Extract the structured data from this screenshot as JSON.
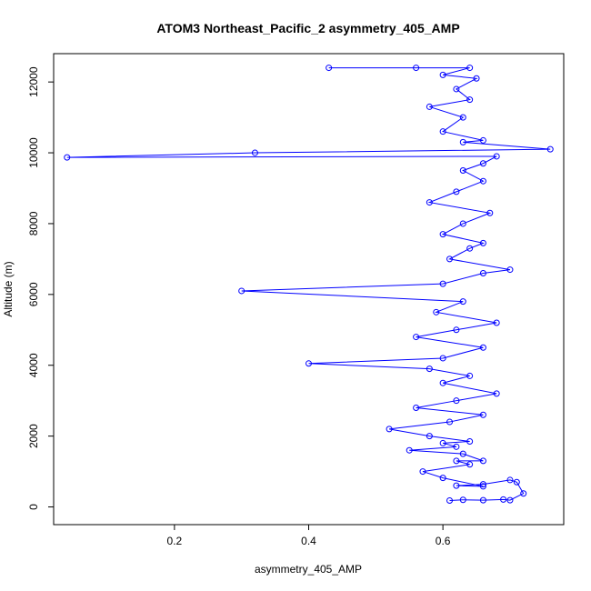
{
  "chart_data": {
    "type": "line",
    "title": "ATOM3 Northeast_Pacific_2 asymmetry_405_AMP",
    "xlabel": "asymmetry_405_AMP",
    "ylabel": "Altitude (m)",
    "xlim": [
      0.02,
      0.78
    ],
    "ylim": [
      -500,
      12800
    ],
    "xticks": [
      0.2,
      0.4,
      0.6
    ],
    "xtick_labels": [
      "0.2",
      "0.4",
      "0.6"
    ],
    "yticks": [
      0,
      2000,
      4000,
      6000,
      8000,
      10000,
      12000
    ],
    "ytick_labels": [
      "0",
      "2000",
      "4000",
      "6000",
      "8000",
      "10000",
      "12000"
    ],
    "grid": false,
    "marker": "open-circle",
    "color": "#0000ff",
    "series": [
      {
        "points": [
          [
            0.61,
            180
          ],
          [
            0.63,
            200
          ],
          [
            0.66,
            190
          ],
          [
            0.69,
            210
          ],
          [
            0.7,
            190
          ],
          [
            0.72,
            380
          ],
          [
            0.71,
            700
          ],
          [
            0.7,
            760
          ],
          [
            0.66,
            640
          ],
          [
            0.62,
            600
          ],
          [
            0.66,
            580
          ],
          [
            0.6,
            820
          ],
          [
            0.57,
            1000
          ],
          [
            0.64,
            1200
          ],
          [
            0.62,
            1300
          ],
          [
            0.66,
            1300
          ],
          [
            0.63,
            1500
          ],
          [
            0.55,
            1600
          ],
          [
            0.62,
            1700
          ],
          [
            0.6,
            1800
          ],
          [
            0.64,
            1850
          ],
          [
            0.58,
            2000
          ],
          [
            0.52,
            2200
          ],
          [
            0.61,
            2400
          ],
          [
            0.66,
            2600
          ],
          [
            0.56,
            2800
          ],
          [
            0.62,
            3000
          ],
          [
            0.68,
            3200
          ],
          [
            0.6,
            3500
          ],
          [
            0.64,
            3700
          ],
          [
            0.58,
            3900
          ],
          [
            0.4,
            4050
          ],
          [
            0.6,
            4200
          ],
          [
            0.66,
            4500
          ],
          [
            0.56,
            4800
          ],
          [
            0.62,
            5000
          ],
          [
            0.68,
            5200
          ],
          [
            0.59,
            5500
          ],
          [
            0.63,
            5800
          ],
          [
            0.3,
            6100
          ],
          [
            0.6,
            6300
          ],
          [
            0.66,
            6600
          ],
          [
            0.7,
            6700
          ],
          [
            0.61,
            7000
          ],
          [
            0.64,
            7300
          ],
          [
            0.66,
            7450
          ],
          [
            0.6,
            7700
          ],
          [
            0.63,
            8000
          ],
          [
            0.67,
            8300
          ],
          [
            0.58,
            8600
          ],
          [
            0.62,
            8900
          ],
          [
            0.66,
            9200
          ],
          [
            0.63,
            9500
          ],
          [
            0.66,
            9700
          ],
          [
            0.68,
            9900
          ],
          [
            0.04,
            9870
          ],
          [
            0.32,
            10000
          ],
          [
            0.76,
            10100
          ],
          [
            0.63,
            10300
          ],
          [
            0.66,
            10350
          ],
          [
            0.6,
            10600
          ],
          [
            0.63,
            11000
          ],
          [
            0.58,
            11300
          ],
          [
            0.64,
            11500
          ],
          [
            0.62,
            11800
          ],
          [
            0.65,
            12100
          ],
          [
            0.6,
            12200
          ],
          [
            0.64,
            12400
          ],
          [
            0.43,
            12400
          ],
          [
            0.56,
            12400
          ]
        ]
      }
    ]
  }
}
